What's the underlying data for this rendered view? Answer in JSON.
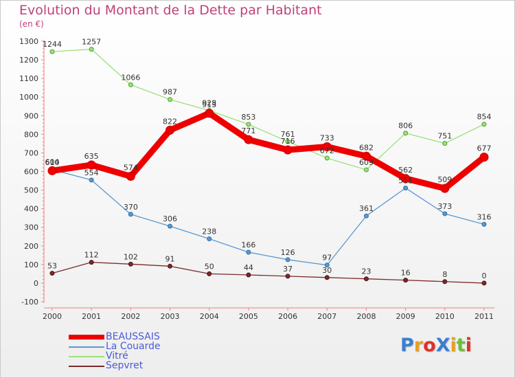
{
  "title": "Evolution du Montant de la Dette par Habitant",
  "unit": "(en €)",
  "logo": "ProXiti",
  "colors": {
    "title": "#c0407a",
    "beaussais": "#ee0000",
    "la_couarde": "#5b98cf",
    "vitre": "#9ee07a",
    "sepvret": "#7a2a2a"
  },
  "chart_data": {
    "type": "line",
    "x": [
      "2000",
      "2001",
      "2002",
      "2003",
      "2004",
      "2005",
      "2006",
      "2007",
      "2008",
      "2009",
      "2010",
      "2011"
    ],
    "ylim": [
      -100,
      1300
    ],
    "yticks": [
      -100,
      0,
      100,
      200,
      300,
      400,
      500,
      600,
      700,
      800,
      900,
      1000,
      1100,
      1200,
      1300
    ],
    "grid": false,
    "legend_position": "bottom-left",
    "series": [
      {
        "name": "BEAUSSAIS",
        "values": [
          604,
          635,
          574,
          822,
          913,
          771,
          716,
          733,
          682,
          562,
          509,
          677
        ]
      },
      {
        "name": "La Couarde",
        "values": [
          610,
          554,
          370,
          306,
          238,
          166,
          126,
          97,
          361,
          511,
          373,
          316
        ]
      },
      {
        "name": "Vitré",
        "values": [
          1244,
          1257,
          1066,
          987,
          928,
          853,
          761,
          672,
          609,
          806,
          751,
          854
        ]
      },
      {
        "name": "Sepvret",
        "values": [
          53,
          112,
          102,
          91,
          50,
          44,
          37,
          30,
          23,
          16,
          8,
          0
        ]
      }
    ]
  }
}
